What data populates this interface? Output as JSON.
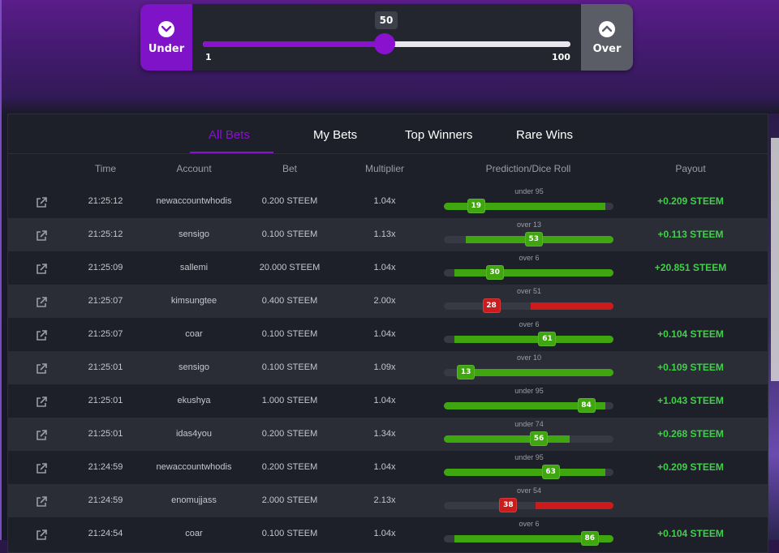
{
  "slider": {
    "under_label": "Under",
    "over_label": "Over",
    "value": "50",
    "value_num": 50,
    "min_label": "1",
    "max_label": "100"
  },
  "tabs": [
    {
      "label": "All Bets",
      "active": true
    },
    {
      "label": "My Bets",
      "active": false
    },
    {
      "label": "Top Winners",
      "active": false
    },
    {
      "label": "Rare Wins",
      "active": false
    }
  ],
  "columns": {
    "time": "Time",
    "account": "Account",
    "bet": "Bet",
    "multiplier": "Multiplier",
    "prediction": "Prediction/Dice Roll",
    "payout": "Payout"
  },
  "colors": {
    "accent": "#8a12cf",
    "win": "#3fd148",
    "win_bar": "#3fa60f",
    "lose_bar": "#cc1b1b"
  },
  "bets": [
    {
      "time": "21:25:12",
      "account": "newaccountwhodis",
      "bet": "0.200 STEEM",
      "multiplier": "1.04x",
      "prediction": "under 95",
      "direction": "under",
      "threshold": 95,
      "roll": 19,
      "roll_label": "19",
      "win": true,
      "payout": "+0.209 STEEM"
    },
    {
      "time": "21:25:12",
      "account": "sensigo",
      "bet": "0.100 STEEM",
      "multiplier": "1.13x",
      "prediction": "over 13",
      "direction": "over",
      "threshold": 13,
      "roll": 53,
      "roll_label": "53",
      "win": true,
      "payout": "+0.113 STEEM"
    },
    {
      "time": "21:25:09",
      "account": "sallemi",
      "bet": "20.000 STEEM",
      "multiplier": "1.04x",
      "prediction": "over 6",
      "direction": "over",
      "threshold": 6,
      "roll": 30,
      "roll_label": "30",
      "win": true,
      "payout": "+20.851 STEEM"
    },
    {
      "time": "21:25:07",
      "account": "kimsungtee",
      "bet": "0.400 STEEM",
      "multiplier": "2.00x",
      "prediction": "over 51",
      "direction": "over",
      "threshold": 51,
      "roll": 28,
      "roll_label": "28",
      "win": false,
      "payout": ""
    },
    {
      "time": "21:25:07",
      "account": "coar",
      "bet": "0.100 STEEM",
      "multiplier": "1.04x",
      "prediction": "over 6",
      "direction": "over",
      "threshold": 6,
      "roll": 61,
      "roll_label": "61",
      "win": true,
      "payout": "+0.104 STEEM"
    },
    {
      "time": "21:25:01",
      "account": "sensigo",
      "bet": "0.100 STEEM",
      "multiplier": "1.09x",
      "prediction": "over 10",
      "direction": "over",
      "threshold": 10,
      "roll": 13,
      "roll_label": "13",
      "win": true,
      "payout": "+0.109 STEEM"
    },
    {
      "time": "21:25:01",
      "account": "ekushya",
      "bet": "1.000 STEEM",
      "multiplier": "1.04x",
      "prediction": "under 95",
      "direction": "under",
      "threshold": 95,
      "roll": 84,
      "roll_label": "84",
      "win": true,
      "payout": "+1.043 STEEM"
    },
    {
      "time": "21:25:01",
      "account": "idas4you",
      "bet": "0.200 STEEM",
      "multiplier": "1.34x",
      "prediction": "under 74",
      "direction": "under",
      "threshold": 74,
      "roll": 56,
      "roll_label": "56",
      "win": true,
      "payout": "+0.268 STEEM"
    },
    {
      "time": "21:24:59",
      "account": "newaccountwhodis",
      "bet": "0.200 STEEM",
      "multiplier": "1.04x",
      "prediction": "under 95",
      "direction": "under",
      "threshold": 95,
      "roll": 63,
      "roll_label": "63",
      "win": true,
      "payout": "+0.209 STEEM"
    },
    {
      "time": "21:24:59",
      "account": "enomujjass",
      "bet": "2.000 STEEM",
      "multiplier": "2.13x",
      "prediction": "over 54",
      "direction": "over",
      "threshold": 54,
      "roll": 38,
      "roll_label": "38",
      "win": false,
      "payout": ""
    },
    {
      "time": "21:24:54",
      "account": "coar",
      "bet": "0.100 STEEM",
      "multiplier": "1.04x",
      "prediction": "over 6",
      "direction": "over",
      "threshold": 6,
      "roll": 86,
      "roll_label": "86",
      "win": true,
      "payout": "+0.104 STEEM"
    }
  ]
}
